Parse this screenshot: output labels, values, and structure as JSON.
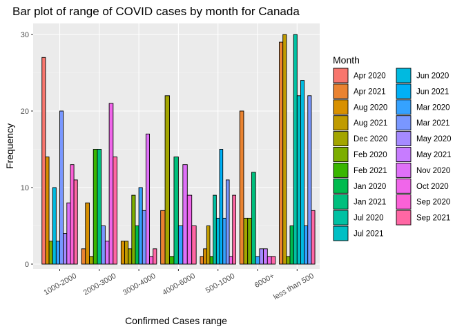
{
  "chart_data": {
    "type": "bar",
    "title": "Bar plot of range of COVID cases by month for Canada",
    "xlabel": "Confirmed Cases range",
    "ylabel": "Frequency",
    "ylim": [
      0,
      31
    ],
    "yticks": [
      0,
      10,
      20,
      30
    ],
    "categories": [
      "1000-2000",
      "2000-3000",
      "3000-4000",
      "4000-6000",
      "500-1000",
      "6000+",
      "less than 500"
    ],
    "legend_title": "Month",
    "legend_position": "right",
    "grid": true,
    "series": [
      {
        "name": "Apr 2020",
        "color": "#F8766D",
        "values": [
          27,
          null,
          null,
          null,
          null,
          null,
          null
        ]
      },
      {
        "name": "Apr 2021",
        "color": "#EA8331",
        "values": [
          null,
          2,
          null,
          7,
          1,
          20,
          29
        ]
      },
      {
        "name": "Aug 2020",
        "color": "#D89000",
        "values": [
          14,
          8,
          3,
          null,
          2,
          null,
          null
        ]
      },
      {
        "name": "Aug 2021",
        "color": "#C09B00",
        "values": [
          null,
          null,
          3,
          null,
          5,
          null,
          30
        ]
      },
      {
        "name": "Dec 2020",
        "color": "#A3A500",
        "values": [
          null,
          1,
          2,
          22,
          null,
          6,
          null
        ]
      },
      {
        "name": "Feb 2020",
        "color": "#7CAE00",
        "values": [
          3,
          null,
          9,
          null,
          null,
          6,
          1
        ]
      },
      {
        "name": "Feb 2021",
        "color": "#39B600",
        "values": [
          null,
          15,
          null,
          1,
          1,
          null,
          null
        ]
      },
      {
        "name": "Jan 2020",
        "color": "#00BB4E",
        "values": [
          null,
          null,
          5,
          null,
          null,
          null,
          5
        ]
      },
      {
        "name": "Jan 2021",
        "color": "#00BF7D",
        "values": [
          null,
          15,
          null,
          14,
          null,
          12,
          null
        ]
      },
      {
        "name": "Jul 2020",
        "color": "#00C1A3",
        "values": [
          null,
          null,
          null,
          null,
          9,
          null,
          30
        ]
      },
      {
        "name": "Jul 2021",
        "color": "#00BFC4",
        "values": [
          null,
          null,
          null,
          null,
          null,
          null,
          22
        ]
      },
      {
        "name": "Jun 2020",
        "color": "#00BAE0",
        "values": [
          10,
          null,
          null,
          null,
          6,
          null,
          24
        ]
      },
      {
        "name": "Jun 2021",
        "color": "#00B0F6",
        "values": [
          null,
          null,
          null,
          null,
          15,
          null,
          null
        ]
      },
      {
        "name": "Mar 2020",
        "color": "#35A2FF",
        "values": [
          3,
          null,
          10,
          5,
          6,
          1,
          5
        ]
      },
      {
        "name": "Mar 2021",
        "color": "#7997FF",
        "values": [
          20,
          5,
          7,
          null,
          11,
          null,
          22
        ]
      },
      {
        "name": "May 2020",
        "color": "#A58AFF",
        "values": [
          4,
          null,
          null,
          null,
          null,
          2,
          null
        ]
      },
      {
        "name": "May 2021",
        "color": "#C77CFF",
        "values": [
          null,
          null,
          null,
          null,
          null,
          2,
          null
        ]
      },
      {
        "name": "Nov 2020",
        "color": "#DF70F8",
        "values": [
          8,
          3,
          17,
          13,
          null,
          null,
          null
        ]
      },
      {
        "name": "Oct 2020",
        "color": "#F066EA",
        "values": [
          null,
          21,
          null,
          9,
          1,
          1,
          null
        ]
      },
      {
        "name": "Sep 2020",
        "color": "#FB61D7",
        "values": [
          13,
          null,
          1,
          null,
          null,
          null,
          null
        ]
      },
      {
        "name": "Sep 2021",
        "color": "#FF67A4",
        "values": [
          11,
          14,
          2,
          5,
          9,
          1,
          7
        ]
      }
    ]
  }
}
